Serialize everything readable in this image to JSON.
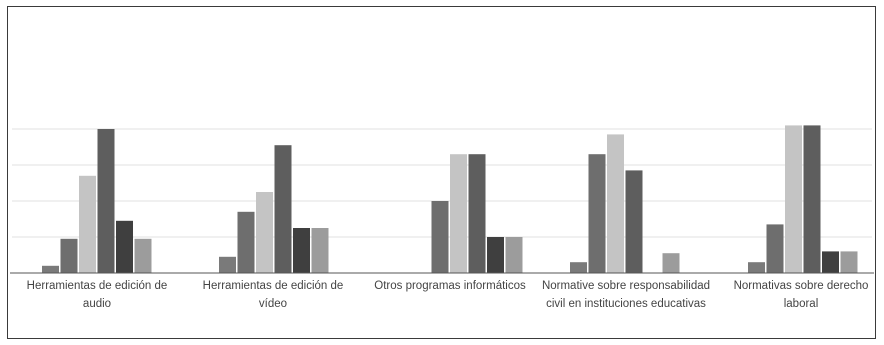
{
  "chart_data": {
    "type": "bar",
    "categories": [
      [
        "Herramientas de edición de",
        "audio"
      ],
      [
        "Herramientas de edición de",
        "vídeo"
      ],
      [
        "Otros programas informáticos"
      ],
      [
        "Normative sobre responsabilidad",
        "civil en instituciones educativas"
      ],
      [
        "Normativas sobre derecho",
        "laboral"
      ]
    ],
    "series": [
      {
        "color": "#7a7a7a",
        "values": [
          4,
          9,
          0,
          6,
          6
        ]
      },
      {
        "color": "#6e6e6e",
        "values": [
          19,
          34,
          40,
          66,
          27
        ]
      },
      {
        "color": "#c4c4c4",
        "values": [
          54,
          45,
          66,
          77,
          82
        ]
      },
      {
        "color": "#5e5e5e",
        "values": [
          80,
          71,
          66,
          57,
          82
        ]
      },
      {
        "color": "#3f3f3f",
        "values": [
          29,
          25,
          20,
          0,
          12
        ]
      },
      {
        "color": "#9c9c9c",
        "values": [
          19,
          25,
          20,
          11,
          12
        ]
      }
    ],
    "ylim": [
      0,
      100
    ],
    "grid": true,
    "legend": "none"
  }
}
